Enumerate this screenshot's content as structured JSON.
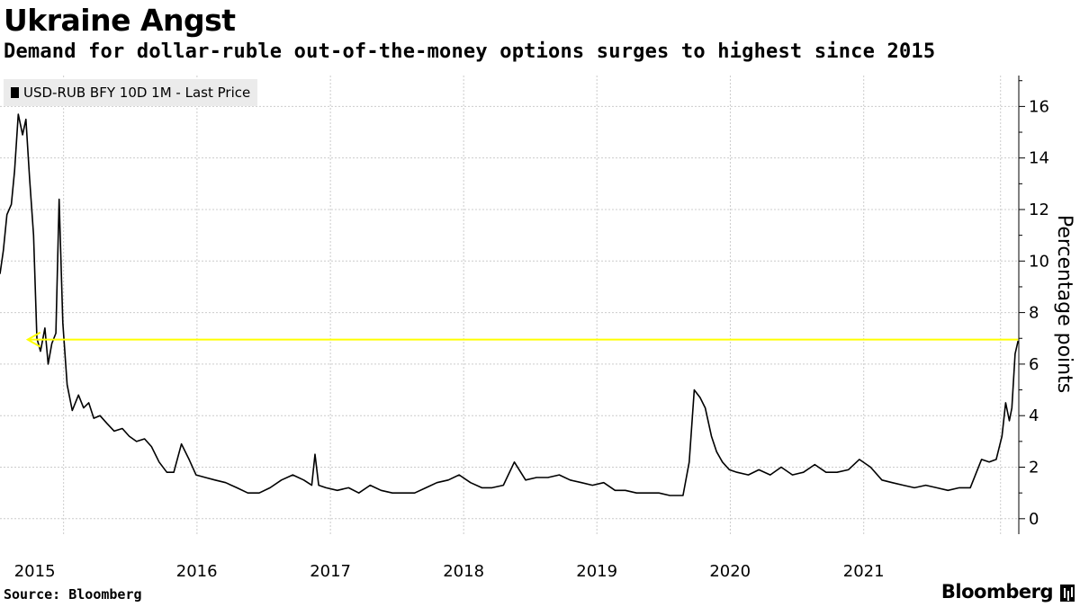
{
  "header": {
    "title": "Ukraine Angst",
    "subtitle": "Demand for dollar-ruble out-of-the-money options surges to highest since 2015"
  },
  "footer": {
    "source": "Source: Bloomberg",
    "brand": "Bloomberg"
  },
  "colors": {
    "line": "#000000",
    "annotation": "#ffff00",
    "grid": "#cccccc",
    "legend_bg": "#ebebeb"
  },
  "chart_data": {
    "type": "line",
    "title": "Ukraine Angst",
    "subtitle": "Demand for dollar-ruble out-of-the-money options surges to highest since 2015",
    "ylabel": "Percentage points",
    "xlabel": "",
    "x_axis_type": "date",
    "xlim": [
      "2014-07-01",
      "2022-02-20"
    ],
    "ylim": [
      -0.6,
      17.2
    ],
    "yticks": [
      0,
      2,
      4,
      6,
      8,
      10,
      12,
      14,
      16
    ],
    "xtick_labels": [
      "2015",
      "2016",
      "2017",
      "2018",
      "2019",
      "2020",
      "2021"
    ],
    "grid": true,
    "legend_position": "top-left",
    "series": [
      {
        "name": "USD-RUB BFY 10D 1M - Last Price",
        "x": [
          "2014-07-01",
          "2014-07-10",
          "2014-07-20",
          "2014-08-01",
          "2014-08-10",
          "2014-08-20",
          "2014-09-01",
          "2014-09-10",
          "2014-09-20",
          "2014-10-01",
          "2014-10-10",
          "2014-10-20",
          "2014-11-01",
          "2014-11-10",
          "2014-11-20",
          "2014-12-01",
          "2014-12-10",
          "2014-12-20",
          "2015-01-01",
          "2015-01-15",
          "2015-02-01",
          "2015-02-15",
          "2015-03-01",
          "2015-03-15",
          "2015-04-01",
          "2015-04-20",
          "2015-05-10",
          "2015-06-01",
          "2015-06-20",
          "2015-07-10",
          "2015-08-01",
          "2015-08-20",
          "2015-09-10",
          "2015-10-01",
          "2015-10-20",
          "2015-11-10",
          "2015-12-01",
          "2015-12-20",
          "2016-01-15",
          "2016-02-10",
          "2016-03-10",
          "2016-04-10",
          "2016-05-10",
          "2016-06-10",
          "2016-07-10",
          "2016-08-10",
          "2016-09-10",
          "2016-10-10",
          "2016-11-01",
          "2016-11-10",
          "2016-11-20",
          "2016-12-10",
          "2017-01-10",
          "2017-02-10",
          "2017-03-10",
          "2017-04-10",
          "2017-05-10",
          "2017-06-10",
          "2017-07-10",
          "2017-08-10",
          "2017-09-10",
          "2017-10-10",
          "2017-11-10",
          "2017-12-10",
          "2018-01-10",
          "2018-02-10",
          "2018-03-10",
          "2018-04-10",
          "2018-05-10",
          "2018-06-10",
          "2018-07-10",
          "2018-08-10",
          "2018-09-10",
          "2018-10-10",
          "2018-11-10",
          "2018-12-10",
          "2019-01-10",
          "2019-02-10",
          "2019-03-10",
          "2019-04-10",
          "2019-05-10",
          "2019-06-10",
          "2019-07-10",
          "2019-08-01",
          "2019-08-15",
          "2019-09-01",
          "2019-09-15",
          "2019-10-01",
          "2019-10-15",
          "2019-11-01",
          "2019-11-15",
          "2019-12-01",
          "2019-12-20",
          "2020-01-10",
          "2020-02-10",
          "2020-03-10",
          "2020-04-10",
          "2020-05-10",
          "2020-06-10",
          "2020-07-10",
          "2020-08-10",
          "2020-09-10",
          "2020-10-10",
          "2020-11-10",
          "2020-12-10",
          "2021-01-10",
          "2021-02-10",
          "2021-03-10",
          "2021-04-10",
          "2021-05-10",
          "2021-06-10",
          "2021-07-10",
          "2021-08-10",
          "2021-09-10",
          "2021-10-10",
          "2021-11-10",
          "2021-12-01",
          "2021-12-20",
          "2022-01-05",
          "2022-01-15",
          "2022-01-25",
          "2022-02-01",
          "2022-02-10",
          "2022-02-18"
        ],
        "y": [
          9.5,
          10.4,
          11.8,
          12.2,
          13.5,
          15.7,
          14.9,
          15.5,
          13.2,
          11.0,
          7.0,
          6.5,
          7.4,
          6.0,
          6.8,
          7.2,
          12.4,
          7.6,
          5.2,
          4.2,
          4.8,
          4.3,
          4.5,
          3.9,
          4.0,
          3.7,
          3.4,
          3.5,
          3.2,
          3.0,
          3.1,
          2.8,
          2.2,
          1.8,
          1.8,
          2.9,
          2.3,
          1.7,
          1.6,
          1.5,
          1.4,
          1.2,
          1.0,
          1.0,
          1.2,
          1.5,
          1.7,
          1.5,
          1.3,
          2.5,
          1.3,
          1.2,
          1.1,
          1.2,
          1.0,
          1.3,
          1.1,
          1.0,
          1.0,
          1.0,
          1.2,
          1.4,
          1.5,
          1.7,
          1.4,
          1.2,
          1.2,
          1.3,
          2.2,
          1.5,
          1.6,
          1.6,
          1.7,
          1.5,
          1.4,
          1.3,
          1.4,
          1.1,
          1.1,
          1.0,
          1.0,
          1.0,
          0.9,
          0.9,
          0.9,
          2.2,
          5.0,
          4.7,
          4.3,
          3.2,
          2.6,
          2.2,
          1.9,
          1.8,
          1.7,
          1.9,
          1.7,
          2.0,
          1.7,
          1.8,
          2.1,
          1.8,
          1.8,
          1.9,
          2.3,
          2.0,
          1.5,
          1.4,
          1.3,
          1.2,
          1.3,
          1.2,
          1.1,
          1.2,
          1.2,
          2.3,
          2.2,
          2.3,
          3.2,
          4.5,
          3.8,
          4.3,
          6.4,
          6.9
        ]
      }
    ],
    "annotations": [
      {
        "type": "arrow",
        "label": "",
        "y": 6.95,
        "from_x": "2022-02-18",
        "to_x": "2014-09-15",
        "color": "#ffff00"
      }
    ]
  }
}
